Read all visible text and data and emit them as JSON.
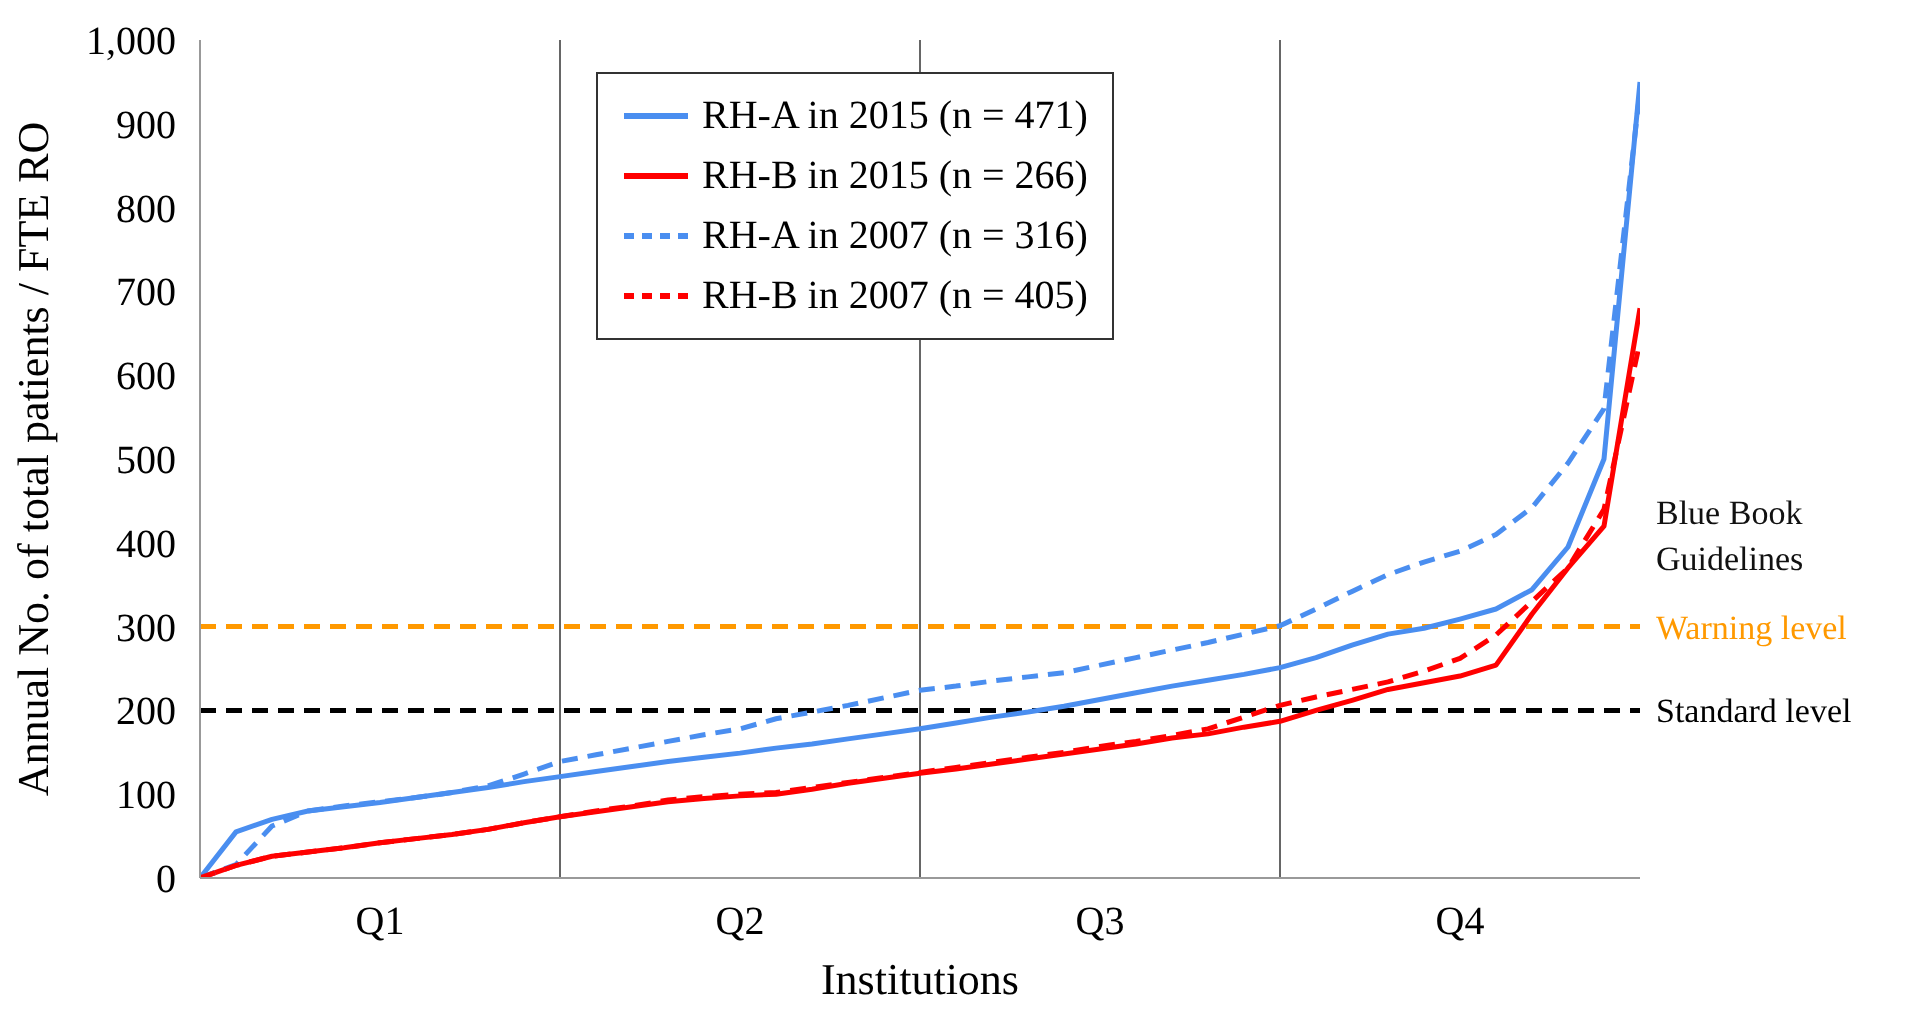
{
  "chart_data": {
    "type": "line",
    "xlabel": "Institutions",
    "ylabel": "Annual No. of total patients / FTE RO",
    "categories": [
      null,
      null,
      null,
      null,
      null,
      "Q1",
      null,
      null,
      null,
      null,
      null,
      null,
      null,
      null,
      null,
      "Q2",
      null,
      null,
      null,
      null,
      null,
      null,
      null,
      null,
      null,
      "Q3",
      null,
      null,
      null,
      null,
      null,
      null,
      null,
      null,
      null,
      "Q4",
      null,
      null,
      null,
      null,
      null
    ],
    "ylim": [
      0,
      1000
    ],
    "yticks": [
      0,
      100,
      200,
      300,
      400,
      500,
      600,
      700,
      800,
      900,
      {
        "value": 1000,
        "label": "1,000"
      }
    ],
    "grid": true,
    "legend": "top",
    "series": [
      {
        "name": "RH-A in 2015 (n = 471)",
        "color": "#4a8ef0",
        "line_style": "solid",
        "values": [
          0,
          55,
          70,
          80,
          85,
          90,
          96,
          102,
          108,
          115,
          121,
          127,
          133,
          139,
          144,
          149,
          155,
          160,
          166,
          172,
          178,
          185,
          192,
          198,
          205,
          213,
          221,
          229,
          236,
          243,
          251,
          263,
          278,
          291,
          298,
          309,
          321,
          344,
          395,
          500,
          950
        ]
      },
      {
        "name": "RH-B in 2015 (n = 266)",
        "color": "#ff0000",
        "line_style": "solid",
        "values": [
          0,
          15,
          26,
          31,
          36,
          42,
          47,
          52,
          58,
          66,
          73,
          79,
          85,
          91,
          95,
          98,
          100,
          106,
          113,
          119,
          125,
          130,
          136,
          142,
          148,
          154,
          160,
          167,
          172,
          180,
          187,
          200,
          212,
          225,
          233,
          241,
          254,
          315,
          370,
          420,
          680
        ]
      },
      {
        "name": "RH-A in 2007 (n = 316)",
        "color": "#4a8ef0",
        "line_style": "dashed",
        "values": [
          0,
          16,
          62,
          80,
          86,
          91,
          96,
          102,
          110,
          124,
          139,
          147,
          155,
          163,
          171,
          178,
          190,
          198,
          206,
          215,
          224,
          229,
          235,
          240,
          245,
          254,
          263,
          272,
          281,
          291,
          301,
          321,
          342,
          362,
          377,
          390,
          410,
          442,
          495,
          560,
          940
        ]
      },
      {
        "name": "RH-B in 2007 (n = 405)",
        "color": "#ff0000",
        "line_style": "dashed",
        "values": [
          0,
          15,
          26,
          31,
          36,
          42,
          47,
          52,
          58,
          66,
          73,
          80,
          86,
          93,
          97,
          100,
          102,
          108,
          114,
          120,
          126,
          132,
          138,
          144,
          150,
          157,
          163,
          170,
          178,
          192,
          206,
          216,
          225,
          234,
          247,
          262,
          290,
          330,
          370,
          440,
          640
        ]
      }
    ],
    "ref_lines": [
      {
        "axis": "y",
        "value": 300,
        "label": "Warning level",
        "color": "#ff9900",
        "line_style": "dashed"
      },
      {
        "axis": "y",
        "value": 200,
        "label": "Standard level",
        "color": "#000000",
        "line_style": "dashed"
      }
    ],
    "annotations": [
      "Blue Book Guidelines"
    ]
  }
}
